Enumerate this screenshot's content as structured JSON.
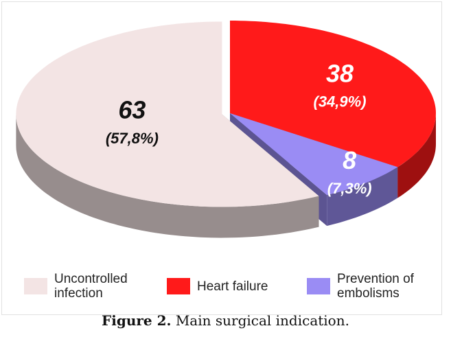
{
  "chart_data": {
    "type": "pie",
    "categories": [
      "Heart failure",
      "Prevention of embolisms",
      "Uncontrolled infection"
    ],
    "values": [
      38,
      8,
      63
    ],
    "percentages": [
      34.9,
      7.3,
      57.8
    ],
    "percentage_labels": [
      "(34,9%)",
      "(7,3%)",
      "(57,8%)"
    ],
    "colors": [
      "#ff1a1a",
      "#9a8cf4",
      "#f3e4e4"
    ],
    "label_colors": [
      "#ffffff",
      "#ffffff",
      "#111111"
    ],
    "legend_order": [
      2,
      0,
      1
    ],
    "caption_label": "Figure 2.",
    "caption": "Main surgical indication."
  }
}
